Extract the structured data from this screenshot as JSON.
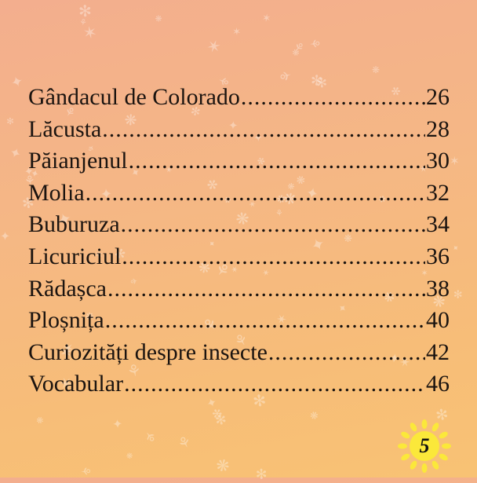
{
  "toc": {
    "entries": [
      {
        "title": "Gândacul de Colorado",
        "page": "26"
      },
      {
        "title": "Lăcusta",
        "page": "28"
      },
      {
        "title": "Păianjenul",
        "page": "30"
      },
      {
        "title": "Molia",
        "page": "32"
      },
      {
        "title": "Buburuza",
        "page": "34"
      },
      {
        "title": "Licuriciul",
        "page": "36"
      },
      {
        "title": "Rădașca",
        "page": "38"
      },
      {
        "title": "Ploșnița",
        "page": "40"
      },
      {
        "title": "Curiozități despre insecte",
        "page": "42"
      },
      {
        "title": "Vocabular",
        "page": "46"
      }
    ]
  },
  "page_number": "5",
  "colors": {
    "sun": "#fbe83a",
    "text": "#1b1410",
    "background_top": "#f3ae8e",
    "background_bottom": "#f8c274"
  }
}
